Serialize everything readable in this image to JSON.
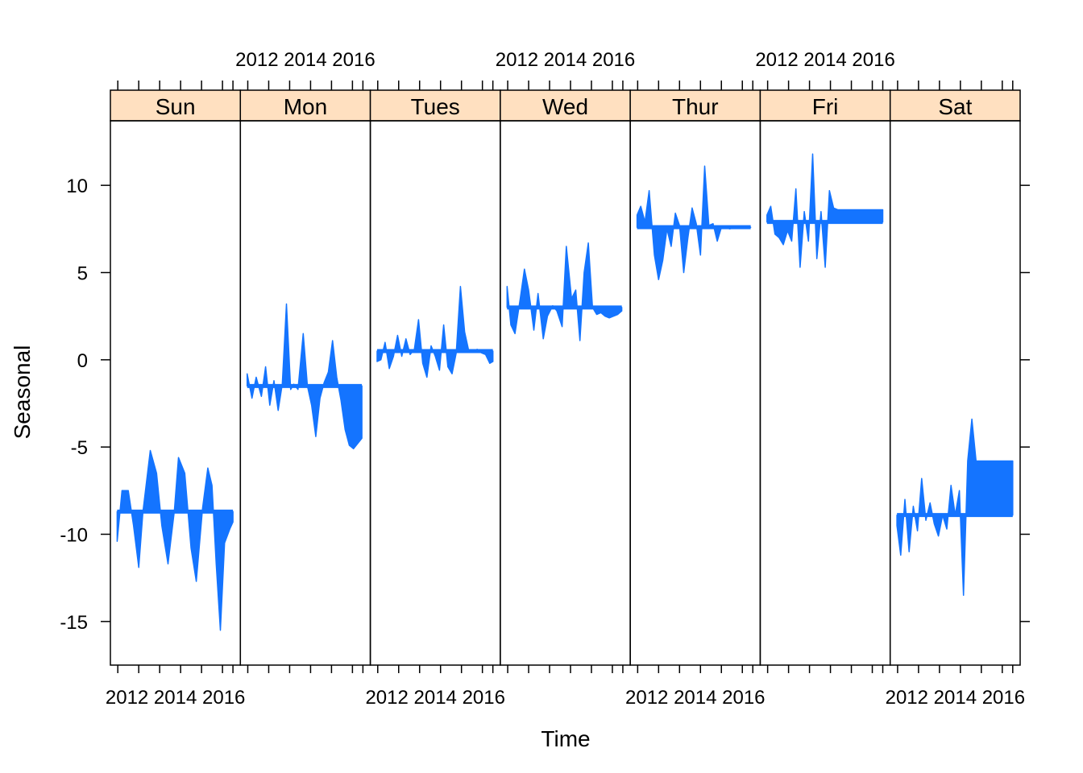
{
  "chart_data": {
    "type": "area",
    "xlabel": "Time",
    "ylabel": "Seasonal",
    "ylim": [
      -17.5,
      13.7
    ],
    "yticks": [
      10,
      5,
      0,
      -5,
      -10,
      -15
    ],
    "ytick_labels": [
      "10",
      "5",
      "0",
      "-5",
      "-10",
      "-15"
    ],
    "xlim": [
      2011.5,
      2017.4
    ],
    "xticks_minor": [
      2011.7,
      2012.7,
      2013.7,
      2014.7,
      2015.7,
      2016.7,
      2017.2
    ],
    "xtick_label_text": "2012 2014 2016",
    "top_label_panels": [
      1,
      3,
      5
    ],
    "bottom_label_panels": [
      0,
      2,
      4,
      6
    ],
    "fill_color": "#1474ff",
    "strip_color": "#ffe0c0",
    "panels": [
      {
        "label": "Sun",
        "baseline": -8.7,
        "x": [
          2011.67,
          2011.9,
          2012.2,
          2012.45,
          2012.7,
          2012.9,
          2013.25,
          2013.55,
          2013.8,
          2014.1,
          2014.4,
          2014.6,
          2014.9,
          2015.2,
          2015.45,
          2015.75,
          2016.0,
          2016.2,
          2016.4,
          2016.6,
          2016.8,
          2017.05,
          2017.2
        ],
        "y": [
          -10.4,
          -7.5,
          -7.5,
          -9.5,
          -11.9,
          -8.7,
          -5.2,
          -6.5,
          -9.5,
          -11.7,
          -8.7,
          -5.6,
          -6.5,
          -10.8,
          -12.7,
          -8.5,
          -6.2,
          -7.2,
          -11.7,
          -15.5,
          -10.5,
          -9.7,
          -9.3
        ]
      },
      {
        "label": "Mon",
        "baseline": -1.5,
        "x": [
          2011.67,
          2011.9,
          2012.1,
          2012.35,
          2012.55,
          2012.75,
          2012.95,
          2013.15,
          2013.35,
          2013.55,
          2013.75,
          2013.9,
          2014.1,
          2014.35,
          2014.55,
          2014.75,
          2014.95,
          2015.15,
          2015.35,
          2015.55,
          2015.75,
          2015.95,
          2016.15,
          2016.35,
          2016.55,
          2016.75,
          2016.95,
          2017.15
        ],
        "y": [
          -0.8,
          -2.2,
          -1.0,
          -2.1,
          -0.4,
          -2.6,
          -1.2,
          -2.9,
          -1.4,
          3.2,
          -1.7,
          -1.4,
          -1.7,
          1.5,
          -1.5,
          -2.6,
          -4.4,
          -2.2,
          -1.3,
          -0.7,
          1.1,
          -1.0,
          -2.3,
          -4.0,
          -4.9,
          -5.1,
          -4.8,
          -4.5
        ]
      },
      {
        "label": "Tues",
        "baseline": 0.5,
        "x": [
          2011.67,
          2011.85,
          2012.05,
          2012.25,
          2012.45,
          2012.65,
          2012.85,
          2013.05,
          2013.25,
          2013.45,
          2013.65,
          2013.85,
          2014.05,
          2014.25,
          2014.45,
          2014.65,
          2014.85,
          2015.05,
          2015.25,
          2015.45,
          2015.65,
          2015.85,
          2016.05,
          2016.25,
          2016.45,
          2016.65,
          2016.85,
          2017.05,
          2017.2
        ],
        "y": [
          -0.1,
          0.0,
          1.0,
          -0.5,
          0.2,
          1.4,
          0.2,
          1.2,
          0.3,
          0.6,
          2.3,
          -0.2,
          -1.0,
          0.8,
          0.2,
          -0.6,
          2.0,
          -0.4,
          -0.8,
          0.4,
          4.2,
          1.6,
          0.5,
          0.5,
          0.6,
          0.4,
          0.3,
          -0.2,
          -0.1
        ]
      },
      {
        "label": "Wed",
        "baseline": 3.0,
        "x": [
          2011.67,
          2011.85,
          2012.05,
          2012.3,
          2012.5,
          2012.7,
          2012.95,
          2013.15,
          2013.4,
          2013.6,
          2013.85,
          2014.05,
          2014.3,
          2014.5,
          2014.75,
          2014.95,
          2015.15,
          2015.35,
          2015.55,
          2015.75,
          2015.95,
          2016.15,
          2016.35,
          2016.55,
          2016.75,
          2016.95,
          2017.15
        ],
        "y": [
          4.2,
          2.0,
          1.5,
          3.5,
          5.2,
          4.0,
          1.7,
          3.8,
          1.2,
          2.5,
          3.1,
          2.8,
          1.9,
          6.5,
          3.5,
          4.0,
          1.1,
          5.0,
          6.7,
          3.0,
          2.6,
          2.7,
          2.5,
          2.4,
          2.5,
          2.6,
          2.8
        ]
      },
      {
        "label": "Thur",
        "baseline": 7.6,
        "x": [
          2011.67,
          2011.85,
          2012.05,
          2012.25,
          2012.5,
          2012.7,
          2012.9,
          2013.1,
          2013.3,
          2013.5,
          2013.7,
          2013.9,
          2014.1,
          2014.3,
          2014.5,
          2014.7,
          2014.9,
          2015.1,
          2015.3,
          2015.5,
          2015.7,
          2015.9,
          2016.1,
          2016.3,
          2016.5,
          2016.7,
          2016.9,
          2017.1
        ],
        "y": [
          8.3,
          8.8,
          7.9,
          9.7,
          6.0,
          4.6,
          5.7,
          7.5,
          6.5,
          8.4,
          7.7,
          5.0,
          7.0,
          8.7,
          7.8,
          6.0,
          11.1,
          7.7,
          7.8,
          6.8,
          7.6,
          7.6,
          7.5,
          7.6,
          7.6,
          7.6,
          7.6,
          7.6
        ]
      },
      {
        "label": "Fri",
        "baseline": 7.9,
        "x": [
          2011.67,
          2011.85,
          2012.05,
          2012.25,
          2012.45,
          2012.65,
          2012.85,
          2013.05,
          2013.25,
          2013.45,
          2013.65,
          2013.85,
          2014.05,
          2014.25,
          2014.45,
          2014.65,
          2014.85,
          2015.05,
          2015.25,
          2015.45,
          2015.65,
          2015.85,
          2016.05,
          2016.25,
          2016.45,
          2016.65,
          2016.85,
          2017.05,
          2017.2
        ],
        "y": [
          8.3,
          8.8,
          7.2,
          7.0,
          6.6,
          7.4,
          6.8,
          9.8,
          5.3,
          8.5,
          6.8,
          11.8,
          5.8,
          8.5,
          5.3,
          9.7,
          8.7,
          8.6,
          8.6,
          8.6,
          8.6,
          8.6,
          8.6,
          8.6,
          8.6,
          8.6,
          8.6,
          8.6,
          8.6
        ]
      },
      {
        "label": "Sat",
        "baseline": -8.9,
        "x": [
          2011.67,
          2011.85,
          2012.05,
          2012.25,
          2012.45,
          2012.65,
          2012.85,
          2013.05,
          2013.25,
          2013.45,
          2013.65,
          2013.85,
          2014.05,
          2014.25,
          2014.45,
          2014.65,
          2014.85,
          2015.05,
          2015.25,
          2015.45,
          2015.65,
          2015.85,
          2016.05,
          2016.25,
          2016.45,
          2016.65,
          2016.85,
          2017.05,
          2017.2
        ],
        "y": [
          -9.5,
          -11.2,
          -8.0,
          -11.0,
          -8.4,
          -9.8,
          -6.8,
          -9.2,
          -8.2,
          -9.4,
          -10.1,
          -8.9,
          -9.7,
          -7.2,
          -8.9,
          -7.5,
          -13.5,
          -5.8,
          -3.4,
          -5.8,
          -5.8,
          -5.8,
          -5.8,
          -5.8,
          -5.8,
          -5.8,
          -5.8,
          -5.8,
          -5.8
        ]
      }
    ]
  }
}
